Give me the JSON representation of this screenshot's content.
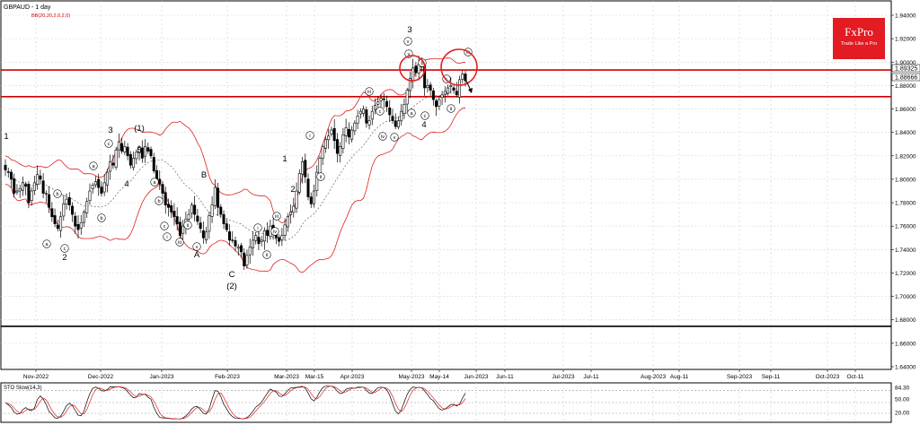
{
  "header": {
    "symbol_line": "GBPAUD - 1 day",
    "indicator_line": "BB(20,20,2.0,2,0)"
  },
  "logo": {
    "brand": "FxPro",
    "tagline": "Trade Like a Pro"
  },
  "price_labels": {
    "upper_resistance": "1.89325",
    "lower_support": "1.88666"
  },
  "stochastic": {
    "title": "STO Slow(14,3)",
    "levels": [
      "84.30",
      "50.00",
      "20.00"
    ]
  },
  "colors": {
    "candle": "#000000",
    "bollinger": "#e02020",
    "middle_band": "#505050",
    "level_line": "#d00000",
    "logo_bg": "#e31b23"
  },
  "chart_data": [
    {
      "type": "candlestick",
      "title": "GBPAUD - 1 day",
      "y_ticks": [
        "1.94000",
        "1.92000",
        "1.90000",
        "1.88000",
        "1.86000",
        "1.84000",
        "1.82000",
        "1.80000",
        "1.78000",
        "1.76000",
        "1.74000",
        "1.72000",
        "1.70000",
        "1.68000",
        "1.66000",
        "1.64000"
      ],
      "ylim": [
        1.635,
        1.945
      ],
      "x_ticks": [
        "Nov-2022",
        "Dec-2022",
        "Jan-2023",
        "Feb-2023",
        "Mar-2023",
        "Mar-15",
        "Apr-2023",
        "May-2023",
        "May-14",
        "Jun-2023",
        "Jun-11",
        "Jul-2023",
        "Jul-11",
        "Aug-2023",
        "Aug-11",
        "Sep-2023",
        "Sep-11",
        "Oct-2023",
        "Oct-11"
      ],
      "horizontal_lines": [
        {
          "value": 1.89325,
          "color": "#d00000"
        },
        {
          "value": 1.8705,
          "color": "#d00000"
        },
        {
          "value": 1.6745,
          "color": "#000000"
        }
      ],
      "closes": [
        1.808,
        1.806,
        1.8,
        1.788,
        1.79,
        1.792,
        1.797,
        1.794,
        1.78,
        1.79,
        1.797,
        1.804,
        1.8,
        1.788,
        1.788,
        1.776,
        1.768,
        1.762,
        1.758,
        1.768,
        1.779,
        1.783,
        1.778,
        1.77,
        1.76,
        1.757,
        1.763,
        1.772,
        1.781,
        1.79,
        1.795,
        1.798,
        1.793,
        1.788,
        1.797,
        1.806,
        1.815,
        1.812,
        1.825,
        1.832,
        1.824,
        1.828,
        1.82,
        1.812,
        1.818,
        1.823,
        1.827,
        1.818,
        1.828,
        1.824,
        1.82,
        1.807,
        1.8,
        1.796,
        1.788,
        1.778,
        1.776,
        1.772,
        1.768,
        1.762,
        1.752,
        1.76,
        1.766,
        1.77,
        1.778,
        1.77,
        1.764,
        1.758,
        1.75,
        1.755,
        1.769,
        1.778,
        1.793,
        1.776,
        1.77,
        1.762,
        1.757,
        1.748,
        1.748,
        1.743,
        1.742,
        1.738,
        1.726,
        1.735,
        1.742,
        1.748,
        1.752,
        1.745,
        1.748,
        1.756,
        1.752,
        1.76,
        1.754,
        1.75,
        1.747,
        1.752,
        1.761,
        1.768,
        1.772,
        1.777,
        1.79,
        1.805,
        1.815,
        1.802,
        1.785,
        1.779,
        1.79,
        1.806,
        1.818,
        1.828,
        1.834,
        1.837,
        1.842,
        1.833,
        1.822,
        1.828,
        1.838,
        1.844,
        1.836,
        1.842,
        1.848,
        1.854,
        1.858,
        1.86,
        1.848,
        1.85,
        1.858,
        1.863,
        1.866,
        1.869,
        1.868,
        1.862,
        1.855,
        1.85,
        1.845,
        1.85,
        1.858,
        1.864,
        1.876,
        1.886,
        1.895,
        1.891,
        1.898,
        1.896,
        1.878,
        1.88,
        1.876,
        1.868,
        1.862,
        1.868,
        1.872,
        1.875,
        1.878,
        1.88,
        1.876,
        1.872,
        1.885,
        1.89,
        1.884
      ],
      "markers": {
        "wave_labels": [
          "1",
          "2",
          "3",
          "4",
          "(1)",
          "5",
          "B",
          "A",
          "C",
          "(2)",
          "1",
          "2",
          "3",
          "4"
        ],
        "sub_wave_labels": [
          "a",
          "b",
          "c",
          "i",
          "ii",
          "iii",
          "iv",
          "v"
        ]
      }
    },
    {
      "type": "line",
      "title": "STO Slow(14,3)",
      "ylim": [
        0,
        100
      ],
      "levels": [
        84.3,
        50.0,
        20.0
      ]
    }
  ]
}
